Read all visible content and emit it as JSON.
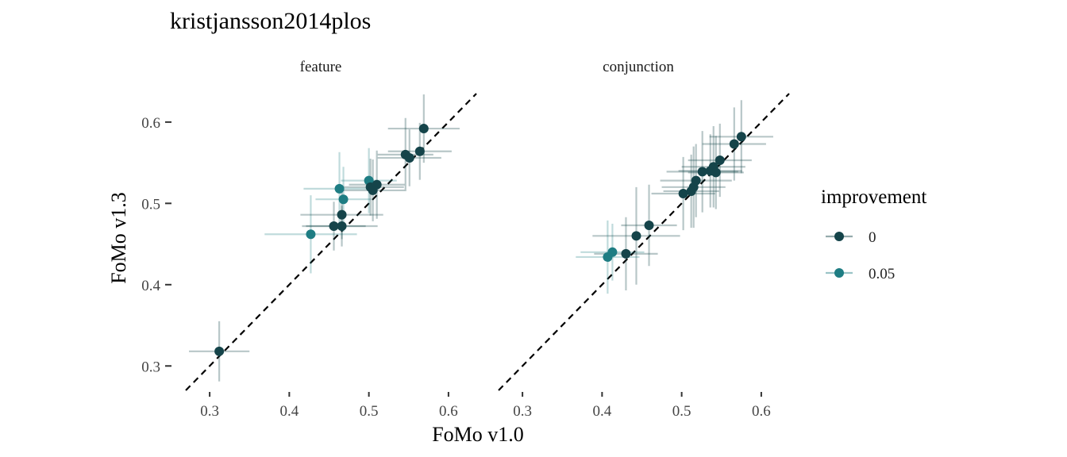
{
  "chart_data": {
    "type": "scatter",
    "title": "kristjansson2014plos",
    "xlabel": "FoMo v1.0",
    "ylabel": "FoMo v1.3",
    "xlim": [
      0.26,
      0.635
    ],
    "ylim": [
      0.27,
      0.635
    ],
    "x_ticks": [
      "0.3",
      "0.4",
      "0.5",
      "0.6"
    ],
    "y_ticks": [
      "0.3",
      "0.4",
      "0.5",
      "0.6"
    ],
    "reference_line": "y = x (dashed)",
    "grid": false,
    "legend": {
      "title": "improvement",
      "placement": "right",
      "entries": [
        {
          "label": "0",
          "color": "#15444a"
        },
        {
          "label": "0.05",
          "color": "#1e7d83"
        }
      ]
    },
    "facets": [
      {
        "label": "feature",
        "points": [
          {
            "x": 0.312,
            "y": 0.318,
            "xerr": 0.038,
            "yerr": 0.037,
            "group": "0"
          },
          {
            "x": 0.427,
            "y": 0.462,
            "xerr": 0.058,
            "yerr": 0.048,
            "group": "0.05"
          },
          {
            "x": 0.456,
            "y": 0.472,
            "xerr": 0.04,
            "yerr": 0.03,
            "group": "0"
          },
          {
            "x": 0.466,
            "y": 0.472,
            "xerr": 0.045,
            "yerr": 0.025,
            "group": "0"
          },
          {
            "x": 0.466,
            "y": 0.486,
            "xerr": 0.052,
            "yerr": 0.03,
            "group": "0"
          },
          {
            "x": 0.468,
            "y": 0.505,
            "xerr": 0.035,
            "yerr": 0.04,
            "group": "0.05"
          },
          {
            "x": 0.463,
            "y": 0.518,
            "xerr": 0.045,
            "yerr": 0.045,
            "group": "0.05"
          },
          {
            "x": 0.5,
            "y": 0.528,
            "xerr": 0.035,
            "yerr": 0.04,
            "group": "0.05"
          },
          {
            "x": 0.502,
            "y": 0.52,
            "xerr": 0.042,
            "yerr": 0.035,
            "group": "0"
          },
          {
            "x": 0.505,
            "y": 0.516,
            "xerr": 0.04,
            "yerr": 0.038,
            "group": "0"
          },
          {
            "x": 0.51,
            "y": 0.523,
            "xerr": 0.035,
            "yerr": 0.042,
            "group": "0"
          },
          {
            "x": 0.546,
            "y": 0.56,
            "xerr": 0.035,
            "yerr": 0.045,
            "group": "0"
          },
          {
            "x": 0.551,
            "y": 0.556,
            "xerr": 0.04,
            "yerr": 0.035,
            "group": "0"
          },
          {
            "x": 0.564,
            "y": 0.564,
            "xerr": 0.04,
            "yerr": 0.035,
            "group": "0"
          },
          {
            "x": 0.569,
            "y": 0.592,
            "xerr": 0.045,
            "yerr": 0.042,
            "group": "0"
          }
        ]
      },
      {
        "label": "conjunction",
        "points": [
          {
            "x": 0.407,
            "y": 0.434,
            "xerr": 0.04,
            "yerr": 0.045,
            "group": "0.05"
          },
          {
            "x": 0.413,
            "y": 0.44,
            "xerr": 0.04,
            "yerr": 0.035,
            "group": "0.05"
          },
          {
            "x": 0.43,
            "y": 0.438,
            "xerr": 0.04,
            "yerr": 0.045,
            "group": "0"
          },
          {
            "x": 0.443,
            "y": 0.46,
            "xerr": 0.055,
            "yerr": 0.06,
            "group": "0"
          },
          {
            "x": 0.459,
            "y": 0.473,
            "xerr": 0.035,
            "yerr": 0.05,
            "group": "0"
          },
          {
            "x": 0.502,
            "y": 0.512,
            "xerr": 0.04,
            "yerr": 0.045,
            "group": "0"
          },
          {
            "x": 0.512,
            "y": 0.515,
            "xerr": 0.035,
            "yerr": 0.045,
            "group": "0"
          },
          {
            "x": 0.515,
            "y": 0.52,
            "xerr": 0.04,
            "yerr": 0.05,
            "group": "0"
          },
          {
            "x": 0.518,
            "y": 0.528,
            "xerr": 0.045,
            "yerr": 0.045,
            "group": "0"
          },
          {
            "x": 0.526,
            "y": 0.539,
            "xerr": 0.045,
            "yerr": 0.05,
            "group": "0"
          },
          {
            "x": 0.536,
            "y": 0.54,
            "xerr": 0.04,
            "yerr": 0.045,
            "group": "0"
          },
          {
            "x": 0.54,
            "y": 0.545,
            "xerr": 0.04,
            "yerr": 0.05,
            "group": "0"
          },
          {
            "x": 0.543,
            "y": 0.538,
            "xerr": 0.035,
            "yerr": 0.045,
            "group": "0"
          },
          {
            "x": 0.548,
            "y": 0.553,
            "xerr": 0.04,
            "yerr": 0.045,
            "group": "0"
          },
          {
            "x": 0.566,
            "y": 0.573,
            "xerr": 0.04,
            "yerr": 0.045,
            "group": "0"
          },
          {
            "x": 0.575,
            "y": 0.582,
            "xerr": 0.04,
            "yerr": 0.045,
            "group": "0"
          }
        ]
      }
    ]
  }
}
